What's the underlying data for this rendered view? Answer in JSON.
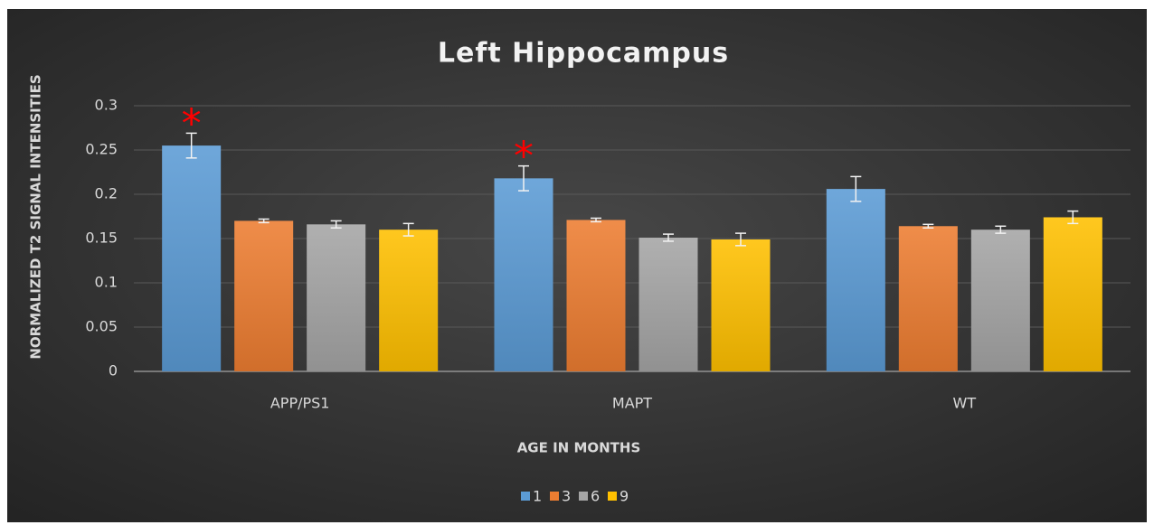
{
  "chart_data": {
    "type": "bar",
    "title": "Left Hippocampus",
    "x_label": "AGE IN MONTHS",
    "y_label": "NORMALIZED T2 SIGNAL INTENSITIES",
    "categories": [
      "APP/PS1",
      "MAPT",
      "WT"
    ],
    "series": [
      {
        "name": "1",
        "color": "#5b9bd5",
        "values": [
          0.255,
          0.218,
          0.206
        ],
        "errors": [
          0.014,
          0.014,
          0.014
        ]
      },
      {
        "name": "3",
        "color": "#ed7d31",
        "values": [
          0.17,
          0.171,
          0.164
        ],
        "errors": [
          0.002,
          0.002,
          0.002
        ]
      },
      {
        "name": "6",
        "color": "#a5a5a5",
        "values": [
          0.166,
          0.151,
          0.16
        ],
        "errors": [
          0.004,
          0.004,
          0.004
        ]
      },
      {
        "name": "9",
        "color": "#ffc000",
        "values": [
          0.16,
          0.149,
          0.174
        ],
        "errors": [
          0.007,
          0.007,
          0.007
        ]
      }
    ],
    "annotations": [
      {
        "text": "*",
        "category": "APP/PS1",
        "series": "1"
      },
      {
        "text": "*",
        "category": "MAPT",
        "series": "1"
      }
    ],
    "ylim": [
      0,
      0.3
    ],
    "yticks": [
      0,
      0.05,
      0.1,
      0.15,
      0.2,
      0.25,
      0.3
    ],
    "grid": true,
    "legend": "bottom"
  }
}
